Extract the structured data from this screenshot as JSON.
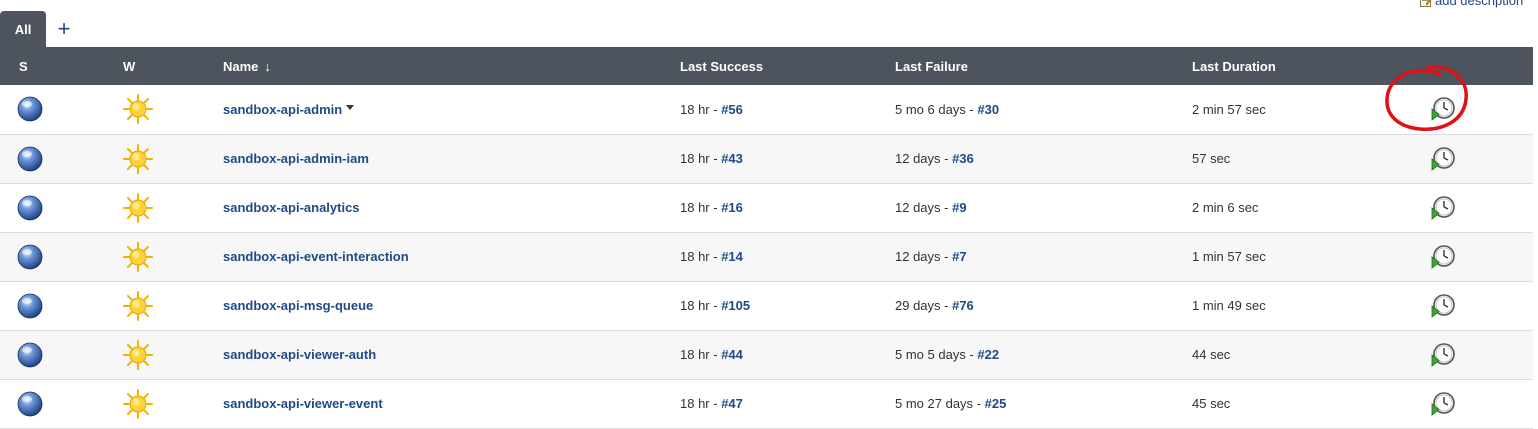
{
  "header": {
    "add_description": "add description"
  },
  "tabs": {
    "all_label": "All",
    "add_label": "+"
  },
  "columns": {
    "status": "S",
    "weather": "W",
    "name": "Name",
    "name_sort": "↓",
    "last_success": "Last Success",
    "last_failure": "Last Failure",
    "last_duration": "Last Duration"
  },
  "jobs": [
    {
      "name": "sandbox-api-admin",
      "success_time": "18 hr - ",
      "success_build": "#56",
      "failure_time": "5 mo 6 days - ",
      "failure_build": "#30",
      "duration": "2 min 57 sec"
    },
    {
      "name": "sandbox-api-admin-iam",
      "success_time": "18 hr - ",
      "success_build": "#43",
      "failure_time": "12 days - ",
      "failure_build": "#36",
      "duration": "57 sec"
    },
    {
      "name": "sandbox-api-analytics",
      "success_time": "18 hr - ",
      "success_build": "#16",
      "failure_time": "12 days - ",
      "failure_build": "#9",
      "duration": "2 min 6 sec"
    },
    {
      "name": "sandbox-api-event-interaction",
      "success_time": "18 hr - ",
      "success_build": "#14",
      "failure_time": "12 days - ",
      "failure_build": "#7",
      "duration": "1 min 57 sec"
    },
    {
      "name": "sandbox-api-msg-queue",
      "success_time": "18 hr - ",
      "success_build": "#105",
      "failure_time": "29 days - ",
      "failure_build": "#76",
      "duration": "1 min 49 sec"
    },
    {
      "name": "sandbox-api-viewer-auth",
      "success_time": "18 hr - ",
      "success_build": "#44",
      "failure_time": "5 mo 5 days - ",
      "failure_build": "#22",
      "duration": "44 sec"
    },
    {
      "name": "sandbox-api-viewer-event",
      "success_time": "18 hr - ",
      "success_build": "#47",
      "failure_time": "5 mo 27 days - ",
      "failure_build": "#25",
      "duration": "45 sec"
    }
  ],
  "icons": {
    "status": "blue-ball-icon",
    "weather": "sunny-icon",
    "schedule": "schedule-build-icon",
    "edit": "edit-note-icon"
  },
  "colors": {
    "header_bg": "#4d545d",
    "link": "#204a87",
    "annotation": "#e0101a"
  }
}
